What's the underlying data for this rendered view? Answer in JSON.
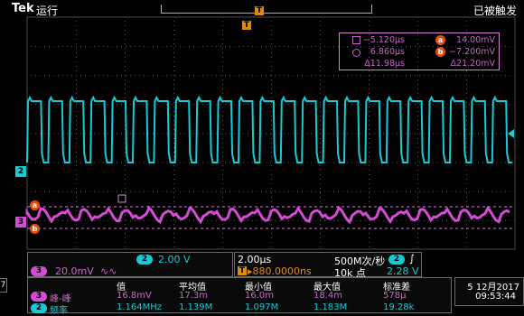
{
  "header": {
    "brand": "Tek",
    "run_state": "运行",
    "trigger_state": "已被触发"
  },
  "colors": {
    "ch2": "#19c9d4",
    "ch3": "#d44bd4",
    "trigger": "#e08a12",
    "cursor": "#d97fd9"
  },
  "markers": {
    "trigger_top": "T",
    "trigger_tag": "T",
    "ch2": "2",
    "ch3": "3",
    "cursor_a": "a",
    "cursor_b": "b"
  },
  "cursors": {
    "row1_left": "−5.120μs",
    "row1_right": "14.00mV",
    "row2_left": "6.860μs",
    "row2_right": "−7.200mV",
    "row3_left": "Δ11.98μs",
    "row3_right": "Δ21.20mV"
  },
  "channels": {
    "ch2_scale": "2.00 V",
    "ch3_scale": "20.0mV",
    "ch3_bw": "∿∿",
    "side_marker": "7"
  },
  "timebase": {
    "scale": "2.00μs",
    "sample_rate": "500M次/秒",
    "delay": "▸880.0000ns",
    "record_length": "10k 点",
    "trigger_source": "2",
    "trigger_slope": "∫",
    "trigger_level": "2.28 V"
  },
  "measurements": {
    "headers": [
      "值",
      "平均值",
      "最小值",
      "最大值",
      "标准差"
    ],
    "rows": [
      {
        "channel": "3",
        "name": "峰-峰",
        "values": [
          "16.8mV",
          "17.3m",
          "16.0m",
          "18.4m",
          "578μ"
        ]
      },
      {
        "channel": "2",
        "name": "频率",
        "values": [
          "1.164MHz",
          "1.139M",
          "1.097M",
          "1.183M",
          "19.28k"
        ]
      }
    ]
  },
  "datetime": {
    "date": "5 12月2017",
    "time": "09:53:44"
  }
}
